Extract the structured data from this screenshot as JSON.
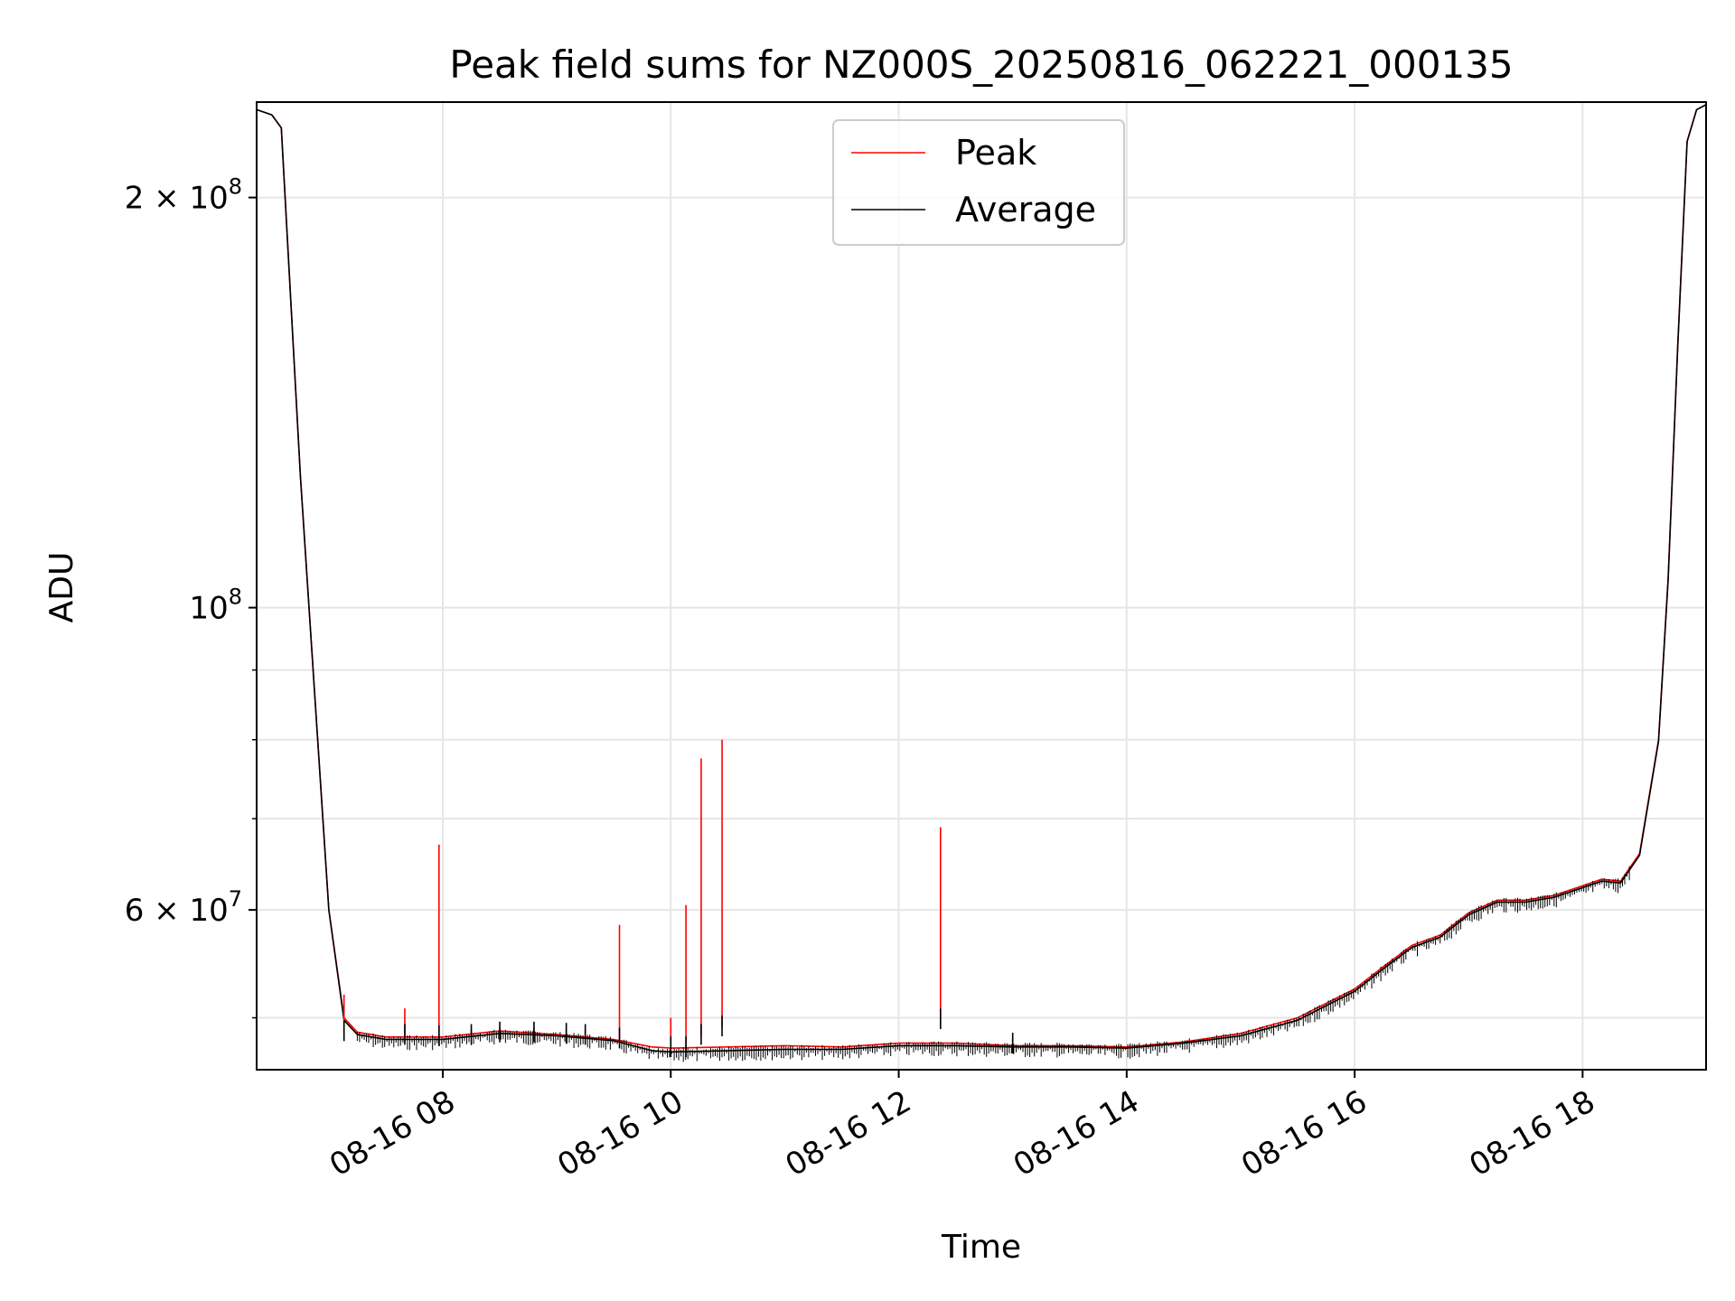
{
  "chart_data": {
    "type": "line",
    "title": "Peak field sums for NZ000S_20250816_062221_000135",
    "xlabel": "Time",
    "ylabel": "ADU",
    "x_is_date": true,
    "xlim": [
      "2025-08-16T06:22",
      "2025-08-16T19:05"
    ],
    "ylim": [
      45800000,
      235000000
    ],
    "yscale": "log",
    "grid": true,
    "legend_position": "upper center",
    "x_tick_labels": [
      "08-16 08",
      "08-16 10",
      "08-16 12",
      "08-16 14",
      "08-16 16",
      "08-16 18"
    ],
    "y_tick_labels": [
      {
        "value": 200000000,
        "base": "2 × 10",
        "exp": "8"
      },
      {
        "value": 100000000,
        "base": "10",
        "exp": "8"
      },
      {
        "value": 60000000,
        "base": "6 × 10",
        "exp": "7"
      }
    ],
    "y_minor_ticks": [
      50000000,
      70000000,
      80000000,
      90000000
    ],
    "series": [
      {
        "name": "Peak",
        "color": "#ff0000",
        "x": [
          "2025-08-16T06:22",
          "2025-08-16T06:30",
          "2025-08-16T06:35",
          "2025-08-16T06:45",
          "2025-08-16T07:00",
          "2025-08-16T07:08",
          "2025-08-16T07:15",
          "2025-08-16T07:30",
          "2025-08-16T08:00",
          "2025-08-16T08:30",
          "2025-08-16T09:00",
          "2025-08-16T09:30",
          "2025-08-16T09:50",
          "2025-08-16T10:00",
          "2025-08-16T10:30",
          "2025-08-16T11:00",
          "2025-08-16T11:30",
          "2025-08-16T12:00",
          "2025-08-16T12:30",
          "2025-08-16T13:00",
          "2025-08-16T13:30",
          "2025-08-16T14:00",
          "2025-08-16T14:30",
          "2025-08-16T15:00",
          "2025-08-16T15:30",
          "2025-08-16T16:00",
          "2025-08-16T16:15",
          "2025-08-16T16:30",
          "2025-08-16T16:45",
          "2025-08-16T17:00",
          "2025-08-16T17:15",
          "2025-08-16T17:30",
          "2025-08-16T17:45",
          "2025-08-16T18:00",
          "2025-08-16T18:10",
          "2025-08-16T18:20",
          "2025-08-16T18:30",
          "2025-08-16T18:40",
          "2025-08-16T18:45",
          "2025-08-16T18:50",
          "2025-08-16T18:55",
          "2025-08-16T19:00",
          "2025-08-16T19:05"
        ],
        "y": [
          232000000,
          230000000,
          225000000,
          125000000,
          60000000,
          50000000,
          48800000,
          48400000,
          48400000,
          48900000,
          48600000,
          48200000,
          47600000,
          47500000,
          47600000,
          47700000,
          47600000,
          47900000,
          47900000,
          47700000,
          47700000,
          47600000,
          48000000,
          48700000,
          50000000,
          52500000,
          54500000,
          56500000,
          57500000,
          59700000,
          61000000,
          61000000,
          61500000,
          62500000,
          63200000,
          63000000,
          66000000,
          80000000,
          105000000,
          155000000,
          220000000,
          232000000,
          234000000
        ]
      },
      {
        "name": "Average",
        "color": "#000000",
        "x": [
          "2025-08-16T06:22",
          "2025-08-16T06:30",
          "2025-08-16T06:35",
          "2025-08-16T06:45",
          "2025-08-16T07:00",
          "2025-08-16T07:08",
          "2025-08-16T07:15",
          "2025-08-16T07:30",
          "2025-08-16T08:00",
          "2025-08-16T08:30",
          "2025-08-16T09:00",
          "2025-08-16T09:30",
          "2025-08-16T09:50",
          "2025-08-16T10:00",
          "2025-08-16T10:30",
          "2025-08-16T11:00",
          "2025-08-16T11:30",
          "2025-08-16T12:00",
          "2025-08-16T12:30",
          "2025-08-16T13:00",
          "2025-08-16T13:30",
          "2025-08-16T14:00",
          "2025-08-16T14:30",
          "2025-08-16T15:00",
          "2025-08-16T15:30",
          "2025-08-16T16:00",
          "2025-08-16T16:15",
          "2025-08-16T16:30",
          "2025-08-16T16:45",
          "2025-08-16T17:00",
          "2025-08-16T17:15",
          "2025-08-16T17:30",
          "2025-08-16T17:45",
          "2025-08-16T18:00",
          "2025-08-16T18:10",
          "2025-08-16T18:20",
          "2025-08-16T18:30",
          "2025-08-16T18:40",
          "2025-08-16T18:45",
          "2025-08-16T18:50",
          "2025-08-16T18:55",
          "2025-08-16T19:00",
          "2025-08-16T19:05"
        ],
        "y": [
          232000000,
          230000000,
          225000000,
          125000000,
          60000000,
          49800000,
          48600000,
          48200000,
          48200000,
          48700000,
          48500000,
          48100000,
          47300000,
          47200000,
          47300000,
          47400000,
          47400000,
          47700000,
          47700000,
          47600000,
          47600000,
          47500000,
          47900000,
          48500000,
          49800000,
          52300000,
          54300000,
          56300000,
          57300000,
          59500000,
          60800000,
          60800000,
          61300000,
          62300000,
          63000000,
          62800000,
          65800000,
          79800000,
          104800000,
          154800000,
          219800000,
          232000000,
          234000000
        ]
      }
    ],
    "spikes": [
      {
        "x": "2025-08-16T07:08",
        "peak": 52000000,
        "average": 48800000
      },
      {
        "x": "2025-08-16T07:40",
        "peak": 50800000,
        "average": 48500000
      },
      {
        "x": "2025-08-16T07:58",
        "peak": 67000000,
        "average": 48400000
      },
      {
        "x": "2025-08-16T08:15",
        "peak": 49000000,
        "average": 48500000
      },
      {
        "x": "2025-08-16T08:30",
        "peak": 49200000,
        "average": 48700000
      },
      {
        "x": "2025-08-16T08:48",
        "peak": 49200000,
        "average": 48700000
      },
      {
        "x": "2025-08-16T09:05",
        "peak": 49100000,
        "average": 48600000
      },
      {
        "x": "2025-08-16T09:15",
        "peak": 49000000,
        "average": 48500000
      },
      {
        "x": "2025-08-16T09:33",
        "peak": 58500000,
        "average": 48200000
      },
      {
        "x": "2025-08-16T10:00",
        "peak": 50000000,
        "average": 47500000
      },
      {
        "x": "2025-08-16T10:08",
        "peak": 60500000,
        "average": 47500000
      },
      {
        "x": "2025-08-16T10:16",
        "peak": 77500000,
        "average": 48500000
      },
      {
        "x": "2025-08-16T10:27",
        "peak": 80000000,
        "average": 49200000
      },
      {
        "x": "2025-08-16T12:22",
        "peak": 69000000,
        "average": 49800000
      },
      {
        "x": "2025-08-16T13:00",
        "peak": 48300000,
        "average": 47800000
      }
    ]
  }
}
